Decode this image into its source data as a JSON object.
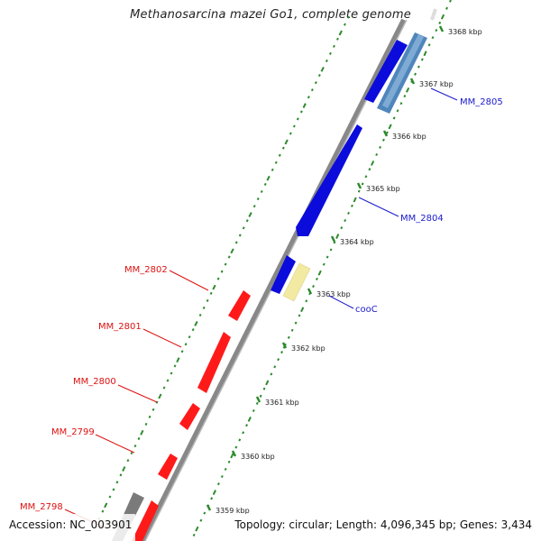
{
  "header": {
    "title": "Methanosarcina mazei Go1, complete genome"
  },
  "footer": {
    "accession": "Accession: NC_003901",
    "summary": "Topology: circular; Length: 4,096,345 bp; Genes: 3,434"
  },
  "colors": {
    "backbone": "#8a8a8a",
    "forward_cds": "#0b0bdc",
    "reverse_cds": "#ff1010",
    "highlight_forward": "#5b8fc0",
    "highlight_reverse": "#f0e7a0",
    "gray_feature": "#7a7a7a",
    "gc_ticks": "#2d8a2d",
    "blue_label": "#1a1acc",
    "red_label": "#dd1111"
  },
  "scale_ticks": [
    "3359 kbp",
    "3360 kbp",
    "3361 kbp",
    "3362 kbp",
    "3363 kbp",
    "3364 kbp",
    "3365 kbp",
    "3366 kbp",
    "3367 kbp",
    "3368 kbp"
  ],
  "gene_labels": {
    "right": [
      "MM_2805",
      "MM_2804",
      "cooC"
    ],
    "left": [
      "MM_2802",
      "MM_2801",
      "MM_2800",
      "MM_2799",
      "MM_2798"
    ]
  }
}
